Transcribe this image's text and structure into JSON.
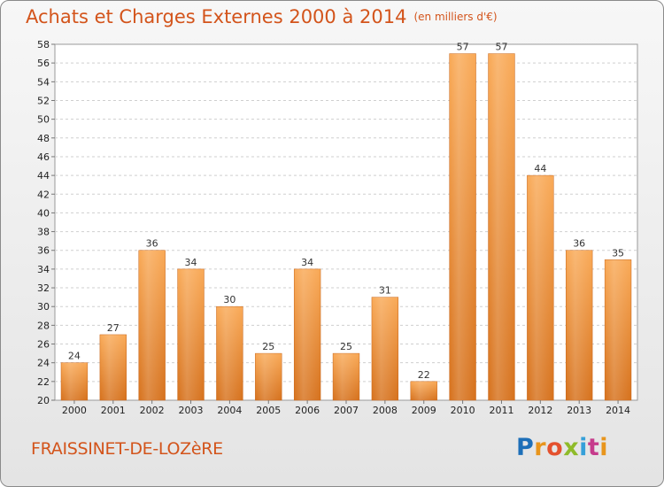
{
  "header": {
    "title": "Achats et Charges Externes 2000 à 2014",
    "subtitle": "(en milliers d'€)"
  },
  "footer": {
    "commune": "FRAISSINET-DE-LOZèRE",
    "logo_text": "Proxiti"
  },
  "colors": {
    "bar_light": "#f7a34d",
    "bar_dark": "#d8741f",
    "title": "#d3541b"
  },
  "chart_data": {
    "type": "bar",
    "title": "Achats et Charges Externes 2000 à 2014",
    "subtitle": "(en milliers d'€)",
    "categories": [
      "2000",
      "2001",
      "2002",
      "2003",
      "2004",
      "2005",
      "2006",
      "2007",
      "2008",
      "2009",
      "2010",
      "2011",
      "2012",
      "2013",
      "2014"
    ],
    "values": [
      24,
      27,
      36,
      34,
      30,
      25,
      34,
      25,
      31,
      22,
      57,
      57,
      44,
      36,
      35
    ],
    "ylim": [
      20,
      58
    ],
    "yticks": [
      20,
      22,
      24,
      26,
      28,
      30,
      32,
      34,
      36,
      38,
      40,
      42,
      44,
      46,
      48,
      50,
      52,
      54,
      56,
      58
    ],
    "grid": true,
    "xlabel": "",
    "ylabel": ""
  }
}
